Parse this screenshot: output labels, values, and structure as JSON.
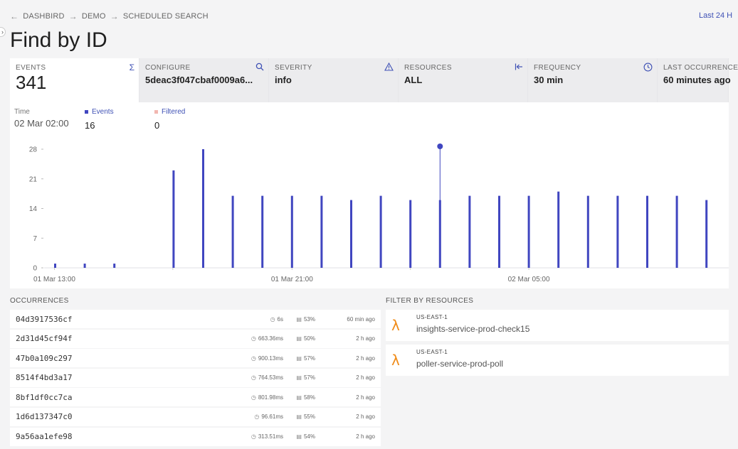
{
  "breadcrumb": {
    "items": [
      "DASHBIRD",
      "DEMO",
      "SCHEDULED SEARCH"
    ],
    "back_icon": "arrow-left-icon"
  },
  "time_range": "Last 24 H",
  "title": "Find by ID",
  "stats": [
    {
      "label": "EVENTS",
      "value": "341",
      "icon": "sigma-icon"
    },
    {
      "label": "CONFIGURE",
      "value": "5deac3f047cbaf0009a6...",
      "icon": "search-icon"
    },
    {
      "label": "SEVERITY",
      "value": "info",
      "icon": "warning-icon"
    },
    {
      "label": "RESOURCES",
      "value": "ALL",
      "icon": "collapse-left-icon"
    },
    {
      "label": "FREQUENCY",
      "value": "30 min",
      "icon": "clock-icon"
    },
    {
      "label": "LAST OCCURRENCE",
      "value": "60 minutes ago",
      "icon": ""
    }
  ],
  "legend": {
    "time_label": "Time",
    "time_value": "02 Mar 02:00",
    "events_label": "Events",
    "events_value": "16",
    "filtered_label": "Filtered",
    "filtered_value": "0",
    "colors": {
      "events": "#4046c0",
      "filtered": "#f2b7b0"
    }
  },
  "chart_data": {
    "type": "bar",
    "series": [
      {
        "name": "Events",
        "values": [
          1,
          1,
          1,
          0,
          23,
          28,
          17,
          17,
          17,
          17,
          16,
          17,
          16,
          16,
          17,
          17,
          17,
          18,
          17,
          17,
          17,
          17,
          16
        ]
      },
      {
        "name": "Filtered",
        "values": [
          0,
          0,
          0,
          0,
          0,
          0,
          0,
          0,
          0,
          0,
          0,
          0,
          0,
          0,
          0,
          0,
          0,
          0,
          0,
          0,
          0,
          0,
          0
        ]
      }
    ],
    "x_ticks": [
      "01 Mar 13:00",
      "01 Mar 21:00",
      "02 Mar 05:00"
    ],
    "y_ticks": [
      0,
      7,
      14,
      21,
      28
    ],
    "ylim": [
      0,
      28
    ],
    "highlight_index": 13,
    "color": "#4046c0"
  },
  "occurrences": {
    "title": "OCCURRENCES",
    "rows": [
      {
        "id": "04d3917536cf",
        "duration": "6s",
        "memory": "53%",
        "ago": "60 min ago"
      },
      {
        "id": "2d31d45cf94f",
        "duration": "663.36ms",
        "memory": "50%",
        "ago": "2 h ago"
      },
      {
        "id": "47b0a109c297",
        "duration": "900.13ms",
        "memory": "57%",
        "ago": "2 h ago"
      },
      {
        "id": "8514f4bd3a17",
        "duration": "764.53ms",
        "memory": "57%",
        "ago": "2 h ago"
      },
      {
        "id": "8bf1df0cc7ca",
        "duration": "801.98ms",
        "memory": "58%",
        "ago": "2 h ago"
      },
      {
        "id": "1d6d137347c0",
        "duration": "96.61ms",
        "memory": "55%",
        "ago": "2 h ago"
      },
      {
        "id": "9a56aa1efe98",
        "duration": "313.51ms",
        "memory": "54%",
        "ago": "2 h ago"
      }
    ]
  },
  "resources": {
    "title": "FILTER BY RESOURCES",
    "items": [
      {
        "region": "US-EAST-1",
        "name": "insights-service-prod-check15",
        "icon": "lambda-icon"
      },
      {
        "region": "US-EAST-1",
        "name": "poller-service-prod-poll",
        "icon": "lambda-icon"
      }
    ]
  }
}
